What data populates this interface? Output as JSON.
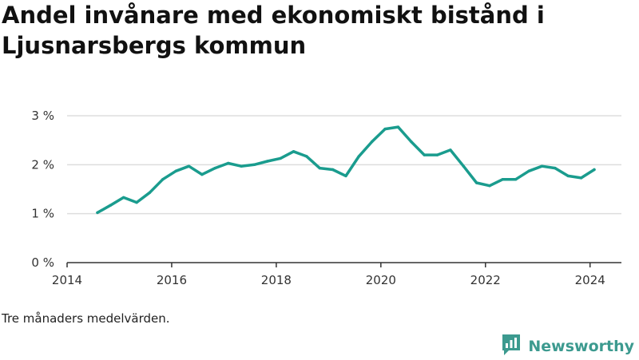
{
  "title": "Andel invånare med ekonomiskt bistånd i Ljusnarsbergs kommun",
  "note": "Tre månaders medelvärden.",
  "brand": {
    "name": "Newsworthy",
    "icon": "newsworthy-logo-icon",
    "color": "#3c9a8f"
  },
  "colors": {
    "line": "#1a9c8e",
    "grid": "#dddddd",
    "axis": "#333333"
  },
  "chart_data": {
    "type": "line",
    "title": "",
    "xlabel": "",
    "ylabel": "",
    "xlim": [
      2014.0,
      2024.6
    ],
    "ylim": [
      0,
      3
    ],
    "grid": true,
    "y_ticks": [
      {
        "value": 0,
        "label": "0 %"
      },
      {
        "value": 1,
        "label": "1 %"
      },
      {
        "value": 2,
        "label": "2 %"
      },
      {
        "value": 3,
        "label": "3 %"
      }
    ],
    "x_ticks": [
      {
        "value": 2014,
        "label": "2014"
      },
      {
        "value": 2016,
        "label": "2016"
      },
      {
        "value": 2018,
        "label": "2018"
      },
      {
        "value": 2020,
        "label": "2020"
      },
      {
        "value": 2022,
        "label": "2022"
      },
      {
        "value": 2024,
        "label": "2024"
      }
    ],
    "series": [
      {
        "color": "#1a9c8e",
        "x": [
          2014.58,
          2014.83,
          2015.08,
          2015.33,
          2015.58,
          2015.83,
          2016.08,
          2016.33,
          2016.58,
          2016.83,
          2017.08,
          2017.33,
          2017.58,
          2017.83,
          2018.08,
          2018.33,
          2018.58,
          2018.83,
          2019.08,
          2019.33,
          2019.58,
          2019.83,
          2020.08,
          2020.33,
          2020.58,
          2020.83,
          2021.08,
          2021.33,
          2021.58,
          2021.83,
          2022.08,
          2022.33,
          2022.58,
          2022.83,
          2023.08,
          2023.33,
          2023.58,
          2023.83,
          2024.08
        ],
        "values": [
          1.02,
          1.17,
          1.33,
          1.23,
          1.43,
          1.7,
          1.87,
          1.97,
          1.8,
          1.93,
          2.03,
          1.97,
          2.0,
          2.07,
          2.13,
          2.27,
          2.17,
          1.93,
          1.9,
          1.77,
          2.17,
          2.47,
          2.73,
          2.77,
          2.47,
          2.2,
          2.2,
          2.3,
          1.97,
          1.63,
          1.57,
          1.7,
          1.7,
          1.87,
          1.97,
          1.93,
          1.77,
          1.73,
          1.9
        ]
      }
    ]
  }
}
